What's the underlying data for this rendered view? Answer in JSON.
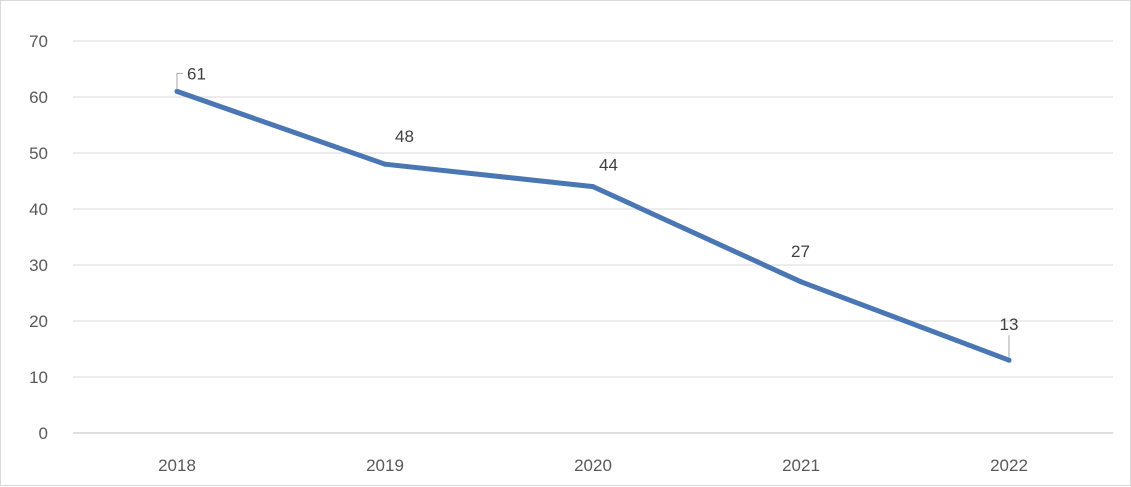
{
  "chart_data": {
    "type": "line",
    "title": "",
    "xlabel": "",
    "ylabel": "",
    "categories": [
      "2018",
      "2019",
      "2020",
      "2021",
      "2022"
    ],
    "series": [
      {
        "values": [
          61,
          48,
          44,
          27,
          13
        ],
        "color": "#4a77b4"
      }
    ],
    "data_labels": [
      "61",
      "48",
      "44",
      "27",
      "13"
    ],
    "ylim": [
      0,
      70
    ],
    "yticks": [
      "0",
      "10",
      "20",
      "30",
      "40",
      "50",
      "60",
      "70"
    ],
    "grid": true,
    "legend": "none"
  }
}
